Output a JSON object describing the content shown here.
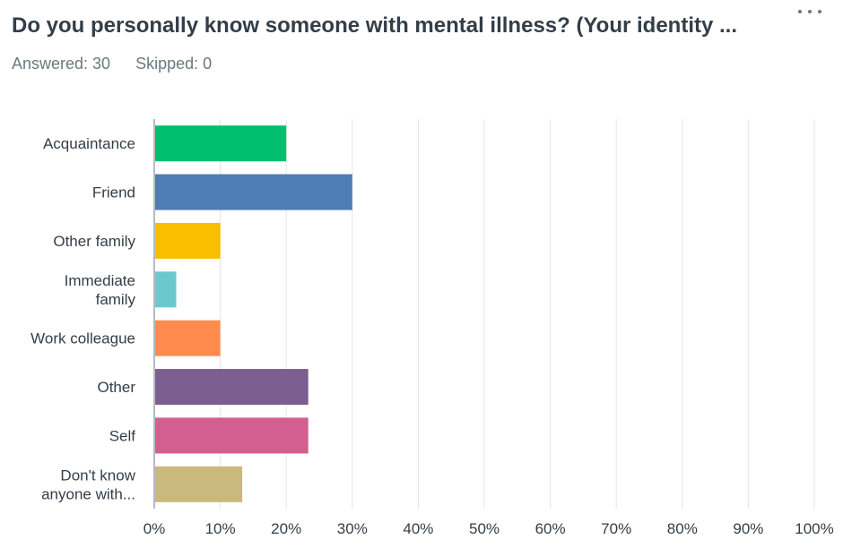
{
  "header": {
    "title": "Do you personally know someone with mental illness? (Your identity ...",
    "answered": "Answered: 30",
    "skipped": "Skipped: 0",
    "menu_icon": "more-horizontal-icon"
  },
  "chart_data": {
    "type": "bar",
    "orientation": "horizontal",
    "title": "",
    "xlabel": "",
    "ylabel": "",
    "xlim": [
      0,
      100
    ],
    "x_unit": "percent",
    "grid": true,
    "categories": [
      [
        "Acquaintance"
      ],
      [
        "Friend"
      ],
      [
        "Other family"
      ],
      [
        "Immediate",
        "family"
      ],
      [
        "Work colleague"
      ],
      [
        "Other"
      ],
      [
        "Self"
      ],
      [
        "Don't know",
        "anyone with..."
      ]
    ],
    "values": [
      20,
      30,
      10,
      3.33,
      10,
      23.33,
      23.33,
      13.33
    ],
    "colors": [
      "#00bf6f",
      "#507cb6",
      "#f9be00",
      "#6bc8cd",
      "#ff8b4f",
      "#7d5e90",
      "#d25f90",
      "#c9b97c"
    ],
    "ticks": [
      "0%",
      "10%",
      "20%",
      "30%",
      "40%",
      "50%",
      "60%",
      "70%",
      "80%",
      "90%",
      "100%"
    ]
  }
}
